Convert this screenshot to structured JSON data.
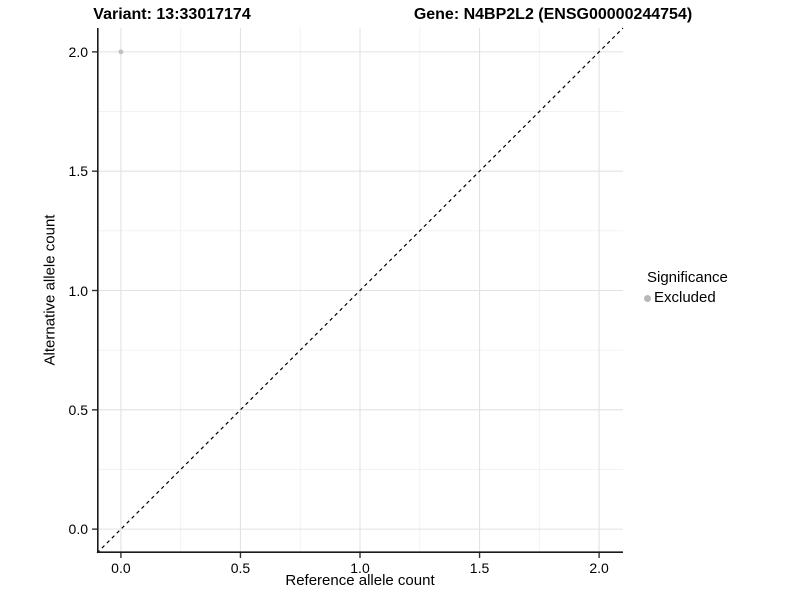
{
  "titles": {
    "variant": "Variant: 13:33017174",
    "gene": "Gene: N4BP2L2 (ENSG00000244754)"
  },
  "axes": {
    "x_label": "Reference allele count",
    "y_label": "Alternative allele count",
    "x_tick_labels": [
      "0.0",
      "0.5",
      "1.0",
      "1.5",
      "2.0"
    ],
    "y_tick_labels": [
      "0.0",
      "0.5",
      "1.0",
      "1.5",
      "2.0"
    ]
  },
  "legend": {
    "title": "Significance",
    "items": [
      {
        "label": "Excluded",
        "color": "#bdbdbd"
      }
    ]
  },
  "colors": {
    "point": "#c0c0c0",
    "legend_dot": "#b8b8b8",
    "grid_major": "#e2e2e2",
    "grid_minor": "#f0f0f0",
    "axis_line": "#1a1a1a",
    "tick_mark": "#333333",
    "identity_line": "#000000",
    "background": "#ffffff"
  },
  "chart_data": {
    "type": "scatter",
    "title": "Variant: 13:33017174   Gene: N4BP2L2 (ENSG00000244754)",
    "xlabel": "Reference allele count",
    "ylabel": "Alternative allele count",
    "xlim": [
      -0.1,
      2.1
    ],
    "ylim": [
      -0.1,
      2.1
    ],
    "x_ticks": [
      0.0,
      0.5,
      1.0,
      1.5,
      2.0
    ],
    "y_ticks": [
      0.0,
      0.5,
      1.0,
      1.5,
      2.0
    ],
    "grid": {
      "on": true,
      "major_step": 0.5,
      "minor_step": 0.25
    },
    "series": [
      {
        "name": "Excluded",
        "color": "#c0c0c0",
        "points": [
          {
            "x": 0.0,
            "y": 2.0
          }
        ]
      }
    ],
    "reference_line": {
      "kind": "identity",
      "style": "dashed",
      "from": [
        -0.1,
        -0.1
      ],
      "to": [
        2.1,
        2.1
      ]
    },
    "legend_position": "right",
    "legend_title": "Significance"
  }
}
